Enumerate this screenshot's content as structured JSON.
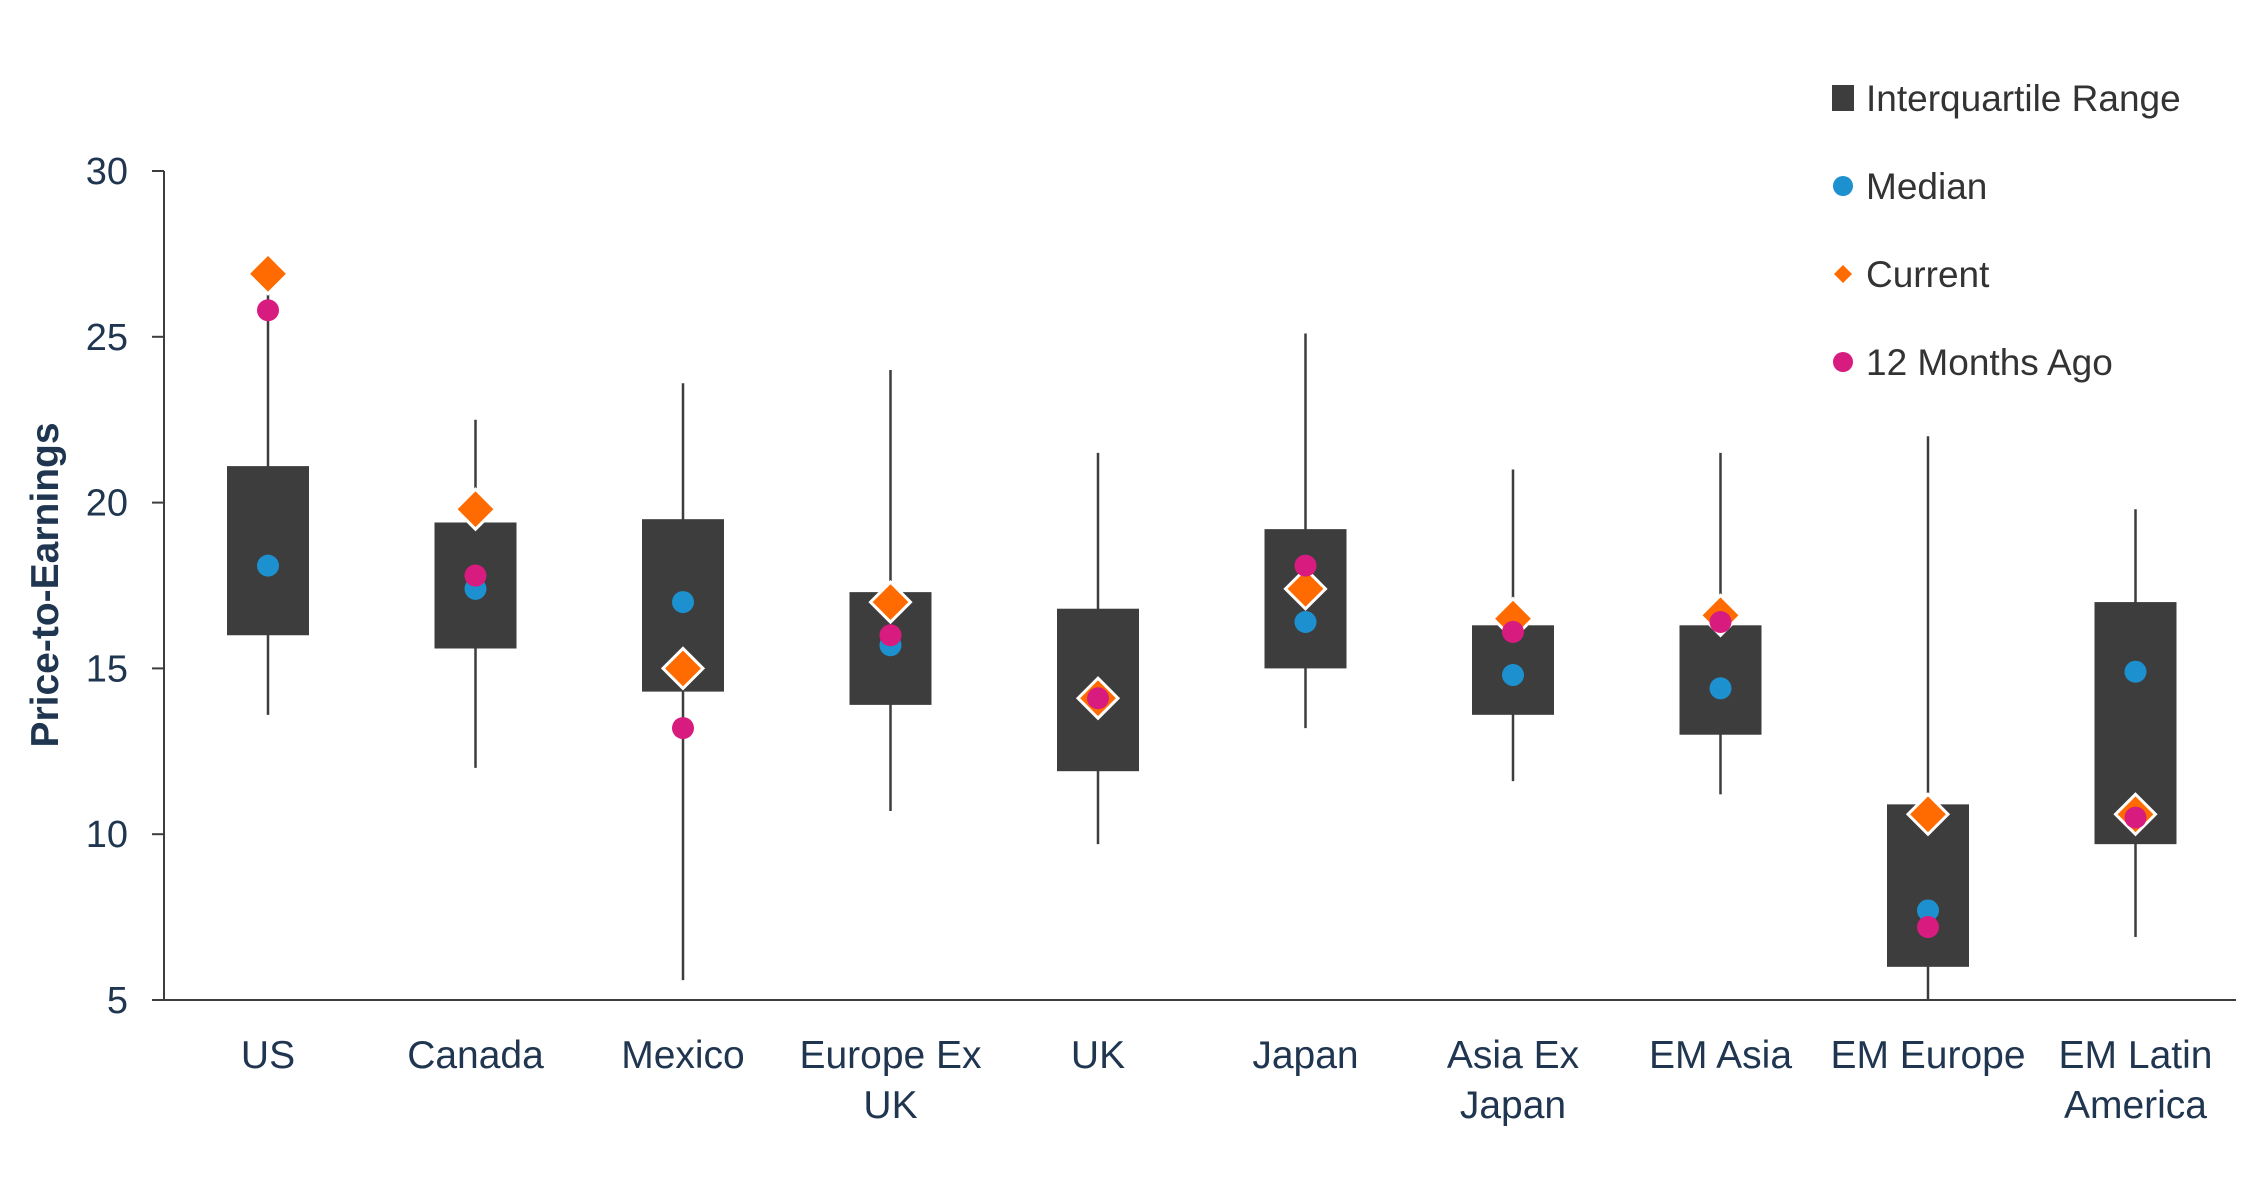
{
  "chart_data": {
    "type": "box",
    "ylabel": "Price-to-Earnings",
    "ylim": [
      5,
      30
    ],
    "yticks": [
      5,
      10,
      15,
      20,
      25,
      30
    ],
    "legend_position": "top-right",
    "categories": [
      {
        "label": [
          "US"
        ],
        "min": 13.6,
        "q1": 16.0,
        "q3": 21.1,
        "max": 26.3,
        "median": 18.1,
        "current": 26.9,
        "ago": 25.8
      },
      {
        "label": [
          "Canada"
        ],
        "min": 12.0,
        "q1": 15.6,
        "q3": 19.4,
        "max": 22.5,
        "median": 17.4,
        "current": 19.8,
        "ago": 17.8
      },
      {
        "label": [
          "Mexico"
        ],
        "min": 5.6,
        "q1": 14.3,
        "q3": 19.5,
        "max": 23.6,
        "median": 17.0,
        "current": 15.0,
        "ago": 13.2
      },
      {
        "label": [
          "Europe Ex",
          "UK"
        ],
        "min": 10.7,
        "q1": 13.9,
        "q3": 17.3,
        "max": 24.0,
        "median": 15.7,
        "current": 17.0,
        "ago": 16.0
      },
      {
        "label": [
          "UK"
        ],
        "min": 9.7,
        "q1": 11.9,
        "q3": 16.8,
        "max": 21.5,
        "median": 14.2,
        "current": 14.1,
        "ago": 14.1
      },
      {
        "label": [
          "Japan"
        ],
        "min": 13.2,
        "q1": 15.0,
        "q3": 19.2,
        "max": 25.1,
        "median": 16.4,
        "current": 17.4,
        "ago": 18.1
      },
      {
        "label": [
          "Asia Ex",
          "Japan"
        ],
        "min": 11.6,
        "q1": 13.6,
        "q3": 16.3,
        "max": 21.0,
        "median": 14.8,
        "current": 16.5,
        "ago": 16.1
      },
      {
        "label": [
          "EM Asia"
        ],
        "min": 11.2,
        "q1": 13.0,
        "q3": 16.3,
        "max": 21.5,
        "median": 14.4,
        "current": 16.6,
        "ago": 16.4
      },
      {
        "label": [
          "EM Europe"
        ],
        "min": 5.0,
        "q1": 6.0,
        "q3": 10.9,
        "max": 22.0,
        "median": 7.7,
        "current": 10.6,
        "ago": 7.2
      },
      {
        "label": [
          "EM Latin",
          "America"
        ],
        "min": 6.9,
        "q1": 9.7,
        "q3": 17.0,
        "max": 19.8,
        "median": 14.9,
        "current": 10.6,
        "ago": 10.5
      }
    ],
    "legend": [
      {
        "key": "iqr",
        "label": "Interquartile Range"
      },
      {
        "key": "median",
        "label": "Median"
      },
      {
        "key": "current",
        "label": "Current"
      },
      {
        "key": "ago",
        "label": "12 Months Ago"
      }
    ],
    "colors": {
      "box": "#3d3d3d",
      "whisker": "#3d3d3d",
      "median": "#1d91d0",
      "current": "#ff6b00",
      "ago": "#d81b7f",
      "axis": "#3d3d3d",
      "text": "#1f3550"
    }
  }
}
